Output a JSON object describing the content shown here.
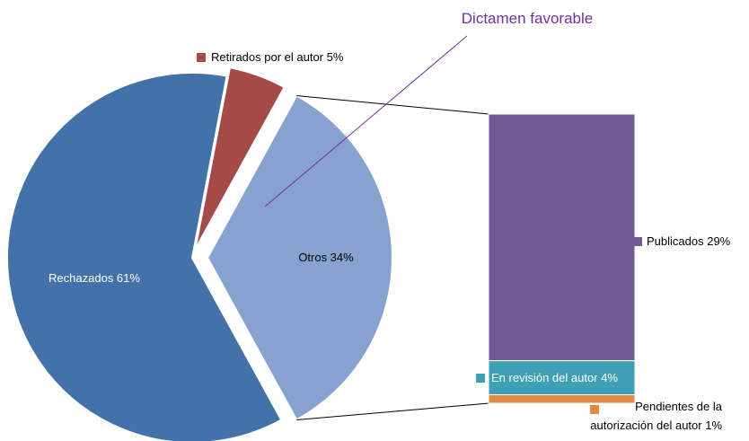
{
  "chart_data": {
    "type": "pie",
    "subtype": "bar-of-pie",
    "pie": {
      "slices": [
        {
          "label": "Rechazados 61%",
          "value": 61,
          "color": "#4272A8"
        },
        {
          "label": "Retirados por el autor 5%",
          "value": 5,
          "color": "#A44A48"
        },
        {
          "label": "Otros 34%",
          "value": 34,
          "color": "#87A2CF",
          "exploded": true
        }
      ]
    },
    "bar": {
      "segments": [
        {
          "label": "Publicados 29%",
          "value": 29,
          "color": "#705B96"
        },
        {
          "label": "En revisión del autor 4%",
          "value": 4,
          "color": "#3EA0B4"
        },
        {
          "label_lines": [
            "Pendientes de la",
            "autorización del autor 1%"
          ],
          "value": 1,
          "color": "#E08A46"
        }
      ]
    },
    "annotation": {
      "text": "Dictamen favorable",
      "color": "#7030A0"
    }
  }
}
